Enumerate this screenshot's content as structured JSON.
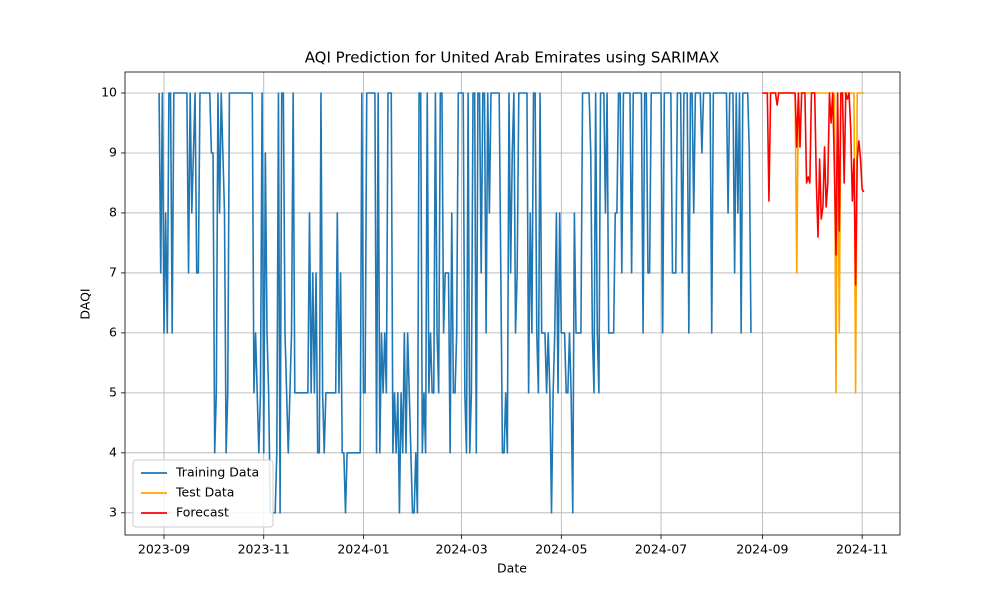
{
  "chart_data": {
    "type": "line",
    "title": "AQI Prediction for United Arab Emirates using SARIMAX",
    "x_label": "Date",
    "y_label": "DAQI",
    "xticks": [
      "2023-09",
      "2023-11",
      "2024-01",
      "2024-03",
      "2024-05",
      "2024-07",
      "2024-09",
      "2024-11"
    ],
    "ylim": [
      2.63,
      10.35
    ],
    "yticks": [
      3,
      4,
      5,
      6,
      7,
      8,
      9,
      10
    ],
    "grid": true,
    "legend": "lower left",
    "series": [
      {
        "name": "Training Data",
        "color": "#1f77b4",
        "values": [
          10,
          7,
          10,
          6,
          8,
          6,
          10,
          10,
          6,
          10,
          10,
          10,
          10,
          10,
          10,
          10,
          10,
          10,
          7,
          10,
          8,
          9,
          10,
          7,
          7,
          10,
          10,
          10,
          10,
          10,
          10,
          10,
          9,
          9,
          4,
          5,
          10,
          8,
          10,
          9,
          8,
          4,
          5,
          10,
          10,
          10,
          10,
          10,
          10,
          10,
          10,
          10,
          10,
          10,
          10,
          10,
          10,
          10,
          5,
          6,
          5,
          4,
          5,
          10,
          4,
          9,
          6,
          5,
          3,
          3,
          3,
          3,
          4,
          10,
          3,
          10,
          10,
          6,
          5,
          4,
          5,
          6,
          10,
          5,
          5,
          5,
          5,
          5,
          5,
          5,
          5,
          5,
          8,
          5,
          7,
          5,
          7,
          4,
          4,
          10,
          5,
          4,
          5,
          5,
          5,
          5,
          5,
          5,
          5,
          8,
          5,
          7,
          4,
          4,
          3,
          4,
          4,
          4,
          4,
          4,
          4,
          4,
          4,
          4,
          10,
          5,
          5,
          10,
          10,
          10,
          10,
          10,
          10,
          4,
          10,
          4,
          6,
          5,
          6,
          5,
          10,
          10,
          10,
          4,
          5,
          4,
          5,
          3,
          5,
          4,
          6,
          4,
          6,
          5,
          4,
          3,
          3,
          4,
          3,
          10,
          10,
          4,
          5,
          4,
          10,
          5,
          6,
          5,
          5,
          10,
          6,
          5,
          10,
          10,
          6,
          7,
          7,
          7,
          4,
          8,
          5,
          5,
          6,
          10,
          10,
          10,
          10,
          5,
          4,
          10,
          4,
          5,
          10,
          10,
          4,
          10,
          10,
          7,
          10,
          10,
          6,
          10,
          8,
          10,
          10,
          10,
          10,
          10,
          10,
          7,
          4,
          4,
          5,
          4,
          10,
          7,
          9,
          10,
          6,
          7,
          10,
          10,
          10,
          10,
          10,
          10,
          5,
          8,
          6,
          10,
          10,
          6,
          5,
          10,
          6,
          6,
          6,
          5,
          6,
          5,
          3,
          5,
          6,
          8,
          5,
          8,
          6,
          6,
          6,
          5,
          5,
          6,
          5,
          3,
          8,
          6,
          6,
          6,
          6,
          10,
          10,
          10,
          10,
          10,
          9,
          6,
          5,
          10,
          6,
          5,
          10,
          10,
          10,
          8,
          10,
          6,
          6,
          6,
          6,
          8,
          8,
          10,
          10,
          7,
          10,
          10,
          10,
          10,
          10,
          7,
          10,
          10,
          10,
          10,
          10,
          10,
          6,
          10,
          10,
          7,
          7,
          10,
          10,
          10,
          10,
          10,
          10,
          10,
          6,
          10,
          10,
          10,
          10,
          10,
          7,
          7,
          7,
          10,
          10,
          10,
          7,
          10,
          10,
          10,
          6,
          10,
          10,
          8,
          10,
          10,
          10,
          10,
          9,
          10,
          10,
          10,
          10,
          10,
          6,
          10,
          10,
          10,
          10,
          10,
          10,
          10,
          10,
          10,
          8,
          10,
          10,
          10,
          7,
          10,
          8,
          10,
          6,
          10,
          10,
          10,
          10,
          9,
          6
        ]
      },
      {
        "name": "Test Data",
        "color": "#ffa500",
        "values": [
          10,
          10,
          10,
          10,
          10,
          10,
          10,
          10,
          10,
          10,
          10,
          10,
          10,
          10,
          10,
          10,
          10,
          10,
          10,
          10,
          10,
          7,
          10,
          10,
          10,
          10,
          10,
          10,
          10,
          10,
          10,
          10,
          10,
          10,
          10,
          10,
          10,
          10,
          10,
          10,
          10,
          10,
          10,
          10,
          10,
          5,
          10,
          6,
          10,
          10,
          10,
          10,
          10,
          10,
          10,
          10,
          10,
          5,
          10,
          10,
          10,
          10,
          10
        ]
      },
      {
        "name": "Forecast",
        "color": "#ff0000",
        "values": [
          10,
          10,
          10,
          10,
          8.2,
          10,
          10,
          10,
          10,
          9.8,
          10,
          10,
          10,
          10,
          10,
          10,
          10,
          10,
          10,
          10,
          10,
          9.1,
          10,
          9.1,
          10,
          10,
          10,
          8.5,
          8.6,
          8.5,
          10,
          10,
          10,
          8.5,
          7.6,
          8.9,
          7.9,
          8.1,
          9.1,
          8.1,
          8.5,
          10,
          9.5,
          10,
          8.8,
          7.3,
          10,
          7.7,
          10,
          10,
          8.5,
          10,
          9.9,
          10,
          9.4,
          8.2,
          8.9,
          6.8,
          8.9,
          9.2,
          8.9,
          8.4,
          8.35
        ]
      }
    ]
  }
}
